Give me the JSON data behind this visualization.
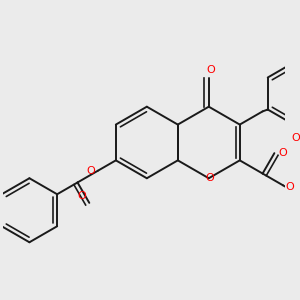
{
  "bg_color": "#ebebeb",
  "bond_color": "#1a1a1a",
  "oxygen_color": "#ff0000",
  "lw": 1.4,
  "figsize": [
    3.0,
    3.0
  ],
  "dpi": 100,
  "xlim": [
    0,
    300
  ],
  "ylim": [
    0,
    300
  ]
}
